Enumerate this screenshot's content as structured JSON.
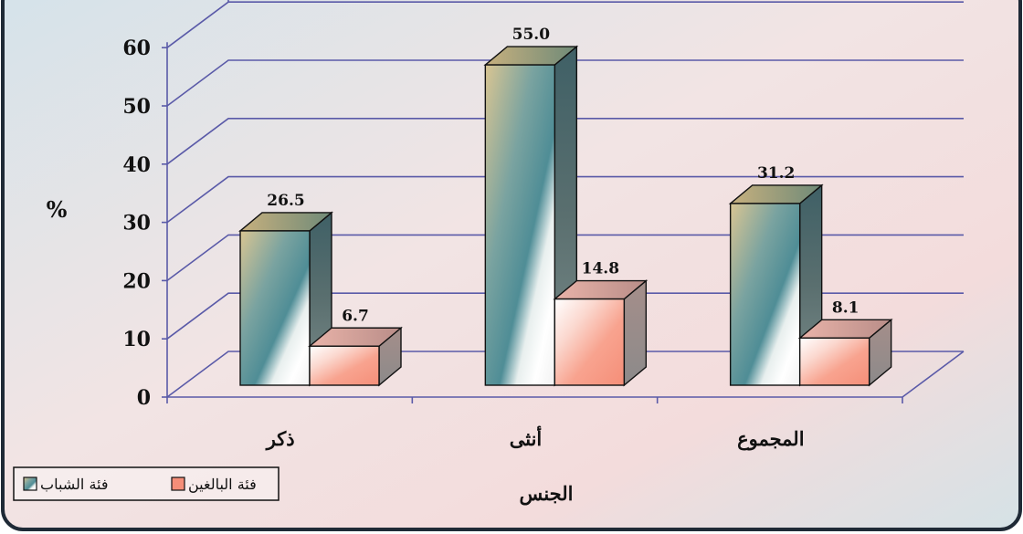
{
  "chart_data": {
    "type": "bar",
    "style": "3d-clustered",
    "categories": [
      "ذكر",
      "أنثى",
      "المجموع"
    ],
    "series": [
      {
        "name": "فئة الشباب",
        "values": [
          26.5,
          55.0,
          31.2
        ]
      },
      {
        "name": "فئة البالغين",
        "values": [
          6.7,
          14.8,
          8.1
        ]
      }
    ],
    "data_labels": [
      [
        "26.5",
        "55.0",
        "31.2"
      ],
      [
        "6.7",
        "14.8",
        "8.1"
      ]
    ],
    "title": "",
    "xlabel": "الجنس",
    "ylabel": "%",
    "ylim": [
      0,
      60
    ],
    "yticks": [
      0,
      10,
      20,
      30,
      40,
      50,
      60
    ],
    "grid": true,
    "legend_position": "bottom-left"
  },
  "colors": {
    "background_light": "#f3dede",
    "background_blue": "#c8dbe2",
    "frame_border": "#1f2a36",
    "grid": "#5555aa",
    "youth_front_top": "#cdbf92",
    "youth_front_mid": "#5e9599",
    "youth_front_white": "#ffffff",
    "youth_side": "#4d5e5e",
    "youth_top": "#b7a474",
    "adult_front": "#f8a08c",
    "adult_side": "#9a8a88",
    "adult_top": "#d8a39a"
  }
}
